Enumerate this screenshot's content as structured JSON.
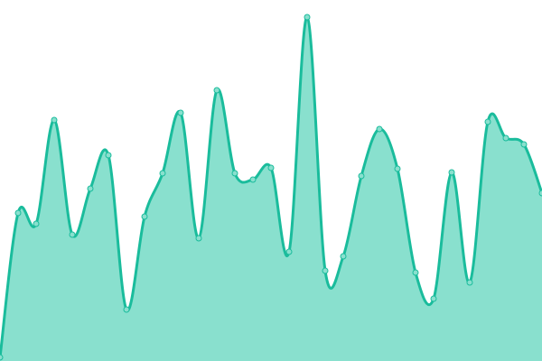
{
  "chart_data": {
    "type": "area",
    "title": "",
    "xlabel": "",
    "ylabel": "",
    "x": [
      0,
      1,
      2,
      3,
      4,
      5,
      6,
      7,
      8,
      9,
      10,
      11,
      12,
      13,
      14,
      15,
      16,
      17,
      18,
      19,
      20,
      21,
      22,
      23,
      24,
      25,
      26,
      27,
      28,
      29,
      30
    ],
    "values": [
      4,
      164,
      152,
      267,
      140,
      191,
      228,
      57,
      160,
      208,
      275,
      136,
      300,
      208,
      201,
      214,
      121,
      381,
      100,
      116,
      205,
      257,
      213,
      98,
      69,
      209,
      87,
      265,
      247,
      240,
      186
    ],
    "ylim": [
      0,
      400
    ],
    "grid": false,
    "legend": "none",
    "curve": "smooth",
    "markers": true,
    "colors": {
      "line": "#1abc9c",
      "fill": "#89e0ce",
      "marker_fill": "#89e0ce",
      "marker_stroke": "#1abc9c"
    }
  }
}
